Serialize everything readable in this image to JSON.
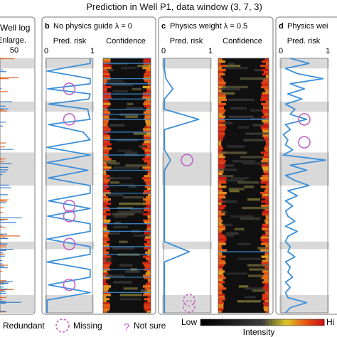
{
  "title": "Prediction in Well P1, data window (3, 7, 3)",
  "panel_a": {
    "label": "Well log",
    "col_header": "Enlarge.",
    "tick": "50"
  },
  "panels": [
    {
      "letter": "b",
      "heading": "No physics guide λ = 0",
      "risk_label": "Pred. risk",
      "conf_label": "Confidence",
      "tick0": "0",
      "tick1": "1"
    },
    {
      "letter": "c",
      "heading": "Physics weight λ = 0.5",
      "risk_label": "Pred. risk",
      "conf_label": "Confidence",
      "tick0": "0",
      "tick1": "1"
    },
    {
      "letter": "d",
      "heading": "Physics wei",
      "risk_label": "Pred. risk",
      "tick0": "0",
      "tick1": "1"
    }
  ],
  "legend": {
    "redundant": "Redundant",
    "missing": "Missing",
    "not_sure": "Not sure",
    "not_sure_symbol": "?",
    "colorbar_low": "Low",
    "colorbar_high": "Hi",
    "colorbar_label": "Intensity"
  },
  "colors": {
    "risk_line": "#3b8fd9",
    "marker": "#c062c4",
    "gray_band": "#d9d9d9",
    "log_orange": "#e06a2a",
    "log_blue": "#3a7fc7"
  },
  "chart_data": {
    "type": "line",
    "x_axis": "Pred. risk",
    "xlim": [
      0,
      1
    ],
    "depth_range": [
      0,
      1
    ],
    "gray_bands": [
      [
        0.0,
        0.04
      ],
      [
        0.17,
        0.21
      ],
      [
        0.37,
        0.5
      ],
      [
        0.72,
        0.75
      ],
      [
        0.93,
        1.0
      ]
    ],
    "series": [
      {
        "panel": "b",
        "depth": [
          0.0,
          0.02,
          0.05,
          0.08,
          0.1,
          0.12,
          0.14,
          0.16,
          0.18,
          0.2,
          0.22,
          0.24,
          0.26,
          0.29,
          0.32,
          0.35,
          0.38,
          0.41,
          0.44,
          0.47,
          0.5,
          0.53,
          0.56,
          0.59,
          0.62,
          0.65,
          0.68,
          0.71,
          0.74,
          0.77,
          0.8,
          0.83,
          0.86,
          0.89,
          0.92,
          0.95,
          0.98,
          1.0
        ],
        "risk": [
          0.95,
          0.95,
          0.02,
          0.95,
          0.95,
          0.03,
          0.95,
          0.92,
          0.05,
          0.9,
          0.92,
          0.95,
          0.05,
          0.8,
          0.95,
          0.02,
          0.95,
          0.02,
          0.9,
          0.05,
          0.95,
          0.95,
          0.05,
          0.95,
          0.03,
          0.95,
          0.95,
          0.02,
          0.95,
          0.95,
          0.02,
          0.95,
          0.95,
          0.05,
          0.95,
          0.02,
          0.02,
          0.02
        ]
      },
      {
        "panel": "c",
        "depth": [
          0.0,
          0.04,
          0.08,
          0.12,
          0.16,
          0.2,
          0.24,
          0.28,
          0.32,
          0.36,
          0.4,
          0.44,
          0.48,
          0.52,
          0.56,
          0.6,
          0.64,
          0.68,
          0.72,
          0.76,
          0.8,
          0.84,
          0.88,
          0.92,
          0.96,
          1.0
        ],
        "risk": [
          0.02,
          0.02,
          0.05,
          0.2,
          0.02,
          0.02,
          0.75,
          0.02,
          0.02,
          0.02,
          0.15,
          0.02,
          0.02,
          0.02,
          0.02,
          0.02,
          0.02,
          0.02,
          0.02,
          0.55,
          0.02,
          0.02,
          0.02,
          0.02,
          0.02,
          0.02
        ]
      },
      {
        "panel": "d",
        "depth": [
          0.0,
          0.02,
          0.04,
          0.06,
          0.08,
          0.1,
          0.12,
          0.14,
          0.16,
          0.18,
          0.2,
          0.22,
          0.24,
          0.26,
          0.28,
          0.3,
          0.32,
          0.34,
          0.36,
          0.38,
          0.4,
          0.42,
          0.44,
          0.46,
          0.48,
          0.5,
          0.52,
          0.54,
          0.56,
          0.58,
          0.6,
          0.62,
          0.64,
          0.66,
          0.68,
          0.7,
          0.72,
          0.74,
          0.76,
          0.78,
          0.8,
          0.82,
          0.84,
          0.86,
          0.88,
          0.9,
          0.92,
          0.94,
          0.96,
          0.98,
          1.0
        ],
        "risk": [
          0.2,
          0.6,
          0.1,
          0.35,
          0.9,
          0.2,
          0.5,
          0.15,
          0.45,
          0.1,
          0.3,
          0.2,
          0.55,
          0.1,
          0.2,
          0.05,
          0.15,
          0.1,
          0.25,
          0.05,
          0.95,
          0.2,
          0.55,
          0.1,
          0.3,
          0.6,
          0.15,
          0.35,
          0.1,
          0.25,
          0.1,
          0.15,
          0.3,
          0.1,
          0.35,
          0.15,
          0.1,
          0.2,
          0.15,
          0.3,
          0.1,
          0.2,
          0.15,
          0.25,
          0.1,
          0.2,
          0.1,
          0.15,
          0.55,
          0.2,
          0.1
        ]
      }
    ],
    "redundant_markers": [
      {
        "panel": "b",
        "depth": [
          0.12,
          0.24,
          0.58,
          0.62,
          0.73,
          0.89
        ]
      },
      {
        "panel": "c",
        "depth": [
          0.4
        ]
      },
      {
        "panel": "d",
        "depth": [
          0.24,
          0.33
        ]
      }
    ],
    "missing_markers": [
      {
        "panel": "c",
        "depth": [
          0.95,
          0.99
        ]
      }
    ]
  }
}
